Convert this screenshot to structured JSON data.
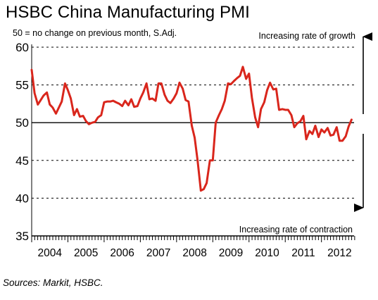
{
  "chart_data": {
    "type": "line",
    "title": "HSBC China Manufacturing PMI",
    "subtitle": "50 = no change on previous month, S.Adj.",
    "annotations": {
      "up": "Increasing rate of growth",
      "down": "Increasing rate of contraction"
    },
    "source": "Sources: Markit, HSBC.",
    "ylim": [
      35,
      60
    ],
    "yticks": [
      35,
      40,
      45,
      50,
      55,
      60
    ],
    "xlim": [
      2004.0,
      2012.9
    ],
    "xticks": [
      "2004",
      "2005",
      "2006",
      "2007",
      "2008",
      "2009",
      "2010",
      "2011",
      "2012"
    ],
    "grid": true,
    "reference_line": 50,
    "line_color": "#d9261c",
    "series": [
      {
        "x": [
          2004.0,
          2004.08,
          2004.17,
          2004.25,
          2004.33,
          2004.42,
          2004.5,
          2004.58,
          2004.67,
          2004.75,
          2004.83,
          2004.92,
          2005.0,
          2005.08,
          2005.17,
          2005.25,
          2005.33,
          2005.42,
          2005.5,
          2005.58,
          2005.67,
          2005.75,
          2005.83,
          2005.92,
          2006.0,
          2006.08,
          2006.17,
          2006.25,
          2006.33,
          2006.42,
          2006.5,
          2006.58,
          2006.67,
          2006.75,
          2006.83,
          2006.92,
          2007.0,
          2007.08,
          2007.17,
          2007.25,
          2007.33,
          2007.42,
          2007.5,
          2007.58,
          2007.67,
          2007.75,
          2007.83,
          2007.92,
          2008.0,
          2008.08,
          2008.17,
          2008.25,
          2008.33,
          2008.42,
          2008.5,
          2008.58,
          2008.67,
          2008.75,
          2008.83,
          2008.92,
          2009.0,
          2009.08,
          2009.17,
          2009.25,
          2009.33,
          2009.42,
          2009.5,
          2009.58,
          2009.67,
          2009.75,
          2009.83,
          2009.92,
          2010.0,
          2010.08,
          2010.17,
          2010.25,
          2010.33,
          2010.42,
          2010.5,
          2010.58,
          2010.67,
          2010.75,
          2010.83,
          2010.92,
          2011.0,
          2011.08,
          2011.17,
          2011.25,
          2011.33,
          2011.42,
          2011.5,
          2011.58,
          2011.67,
          2011.75,
          2011.83,
          2011.92,
          2012.0,
          2012.08,
          2012.17,
          2012.25,
          2012.33,
          2012.42,
          2012.5,
          2012.58,
          2012.67,
          2012.75,
          2012.83
        ],
        "values": [
          57.0,
          53.9,
          52.4,
          53.0,
          53.6,
          54.0,
          52.4,
          52.0,
          51.2,
          52.0,
          52.8,
          55.2,
          54.3,
          53.2,
          51.0,
          51.8,
          50.8,
          50.9,
          50.2,
          49.8,
          50.0,
          50.1,
          50.7,
          51.0,
          52.7,
          52.8,
          52.8,
          52.9,
          52.7,
          52.5,
          52.2,
          52.9,
          52.3,
          53.1,
          52.1,
          52.2,
          53.2,
          54.0,
          55.2,
          53.1,
          53.2,
          52.9,
          55.2,
          55.2,
          53.7,
          52.9,
          52.6,
          53.2,
          53.9,
          55.3,
          54.5,
          53.0,
          52.8,
          49.6,
          48.0,
          45.0,
          41.0,
          41.2,
          42.0,
          45.0,
          45.0,
          50.0,
          51.0,
          51.8,
          52.9,
          55.2,
          55.1,
          55.5,
          55.9,
          56.2,
          57.4,
          55.8,
          56.5,
          53.3,
          50.7,
          49.4,
          51.8,
          52.7,
          54.3,
          55.3,
          54.4,
          54.5,
          51.7,
          51.8,
          51.7,
          51.7,
          51.0,
          49.4,
          49.9,
          50.2,
          50.9,
          47.8,
          48.9,
          48.5,
          49.6,
          48.1,
          49.1,
          48.7,
          49.3,
          48.3,
          48.4,
          49.4,
          47.6,
          47.6,
          48.2,
          49.5,
          50.4
        ]
      }
    ]
  }
}
